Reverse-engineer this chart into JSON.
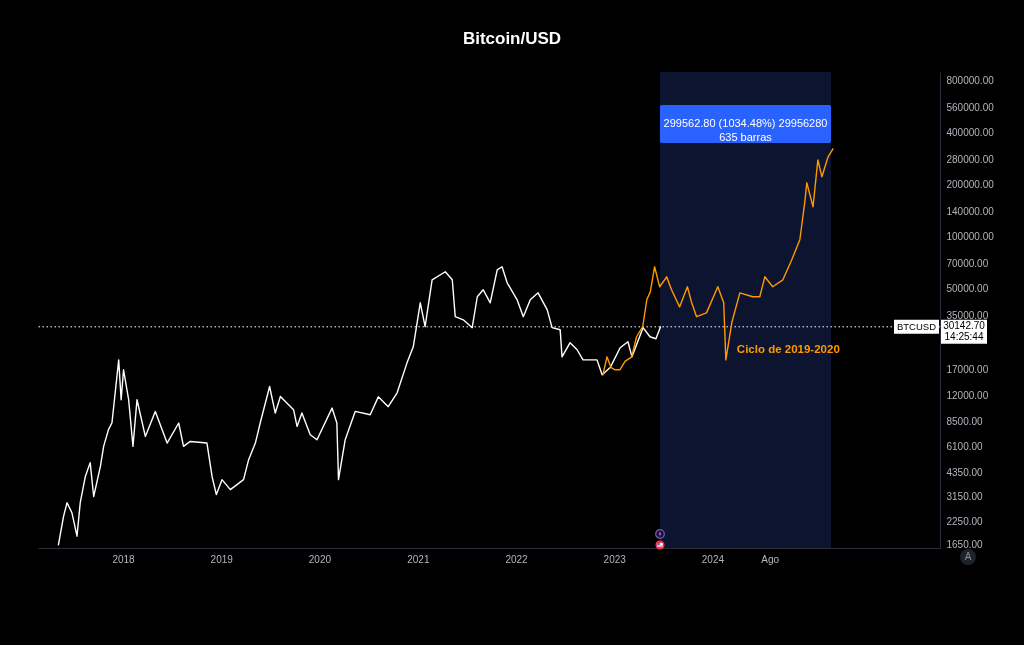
{
  "chart_data": {
    "type": "line",
    "title": "Bitcoin/USD",
    "log": true,
    "xlim": [
      "2017-02-19",
      "2026-04-26"
    ],
    "xticks": [
      "2018",
      "2019",
      "2020",
      "2021",
      "2022",
      "2023",
      "2024",
      {
        "value": "2024-08",
        "label": "Ago"
      }
    ],
    "ylim": [
      1580,
      900000
    ],
    "yticks": [
      {
        "value": 800000,
        "label": "800000.00"
      },
      {
        "value": 560000,
        "label": "560000.00"
      },
      {
        "value": 400000,
        "label": "400000.00"
      },
      {
        "value": 280000,
        "label": "280000.00"
      },
      {
        "value": 200000,
        "label": "200000.00"
      },
      {
        "value": 140000,
        "label": "140000.00"
      },
      {
        "value": 100000,
        "label": "100000.00"
      },
      {
        "value": 70000,
        "label": "70000.00"
      },
      {
        "value": 50000,
        "label": "50000.00"
      },
      {
        "value": 35000,
        "label": "35000.00"
      },
      {
        "value": 17000,
        "label": "17000.00"
      },
      {
        "value": 12000,
        "label": "12000.00"
      },
      {
        "value": 8500,
        "label": "8500.00"
      },
      {
        "value": 6100,
        "label": "6100.00"
      },
      {
        "value": 4350,
        "label": "4350.00"
      },
      {
        "value": 3150,
        "label": "3150.00"
      },
      {
        "value": 2250,
        "label": "2250.00"
      },
      {
        "value": 1650,
        "label": "1650.00"
      }
    ],
    "series": [
      {
        "color": "#ffffff",
        "x": [
          "2017-05-06",
          "2017-05-25",
          "2017-06-07",
          "2017-06-25",
          "2017-07-14",
          "2017-07-26",
          "2017-08-14",
          "2017-09-01",
          "2017-09-14",
          "2017-10-09",
          "2017-10-21",
          "2017-11-08",
          "2017-11-21",
          "2017-12-16",
          "2017-12-25",
          "2018-01-03",
          "2018-01-22",
          "2018-02-07",
          "2018-02-22",
          "2018-03-25",
          "2018-05-01",
          "2018-06-14",
          "2018-07-27",
          "2018-08-14",
          "2018-09-08",
          "2018-11-09",
          "2018-11-28",
          "2018-12-14",
          "2019-01-04",
          "2019-02-04",
          "2019-03-25",
          "2019-04-13",
          "2019-05-08",
          "2019-05-26",
          "2019-06-30",
          "2019-07-21",
          "2019-08-09",
          "2019-09-27",
          "2019-10-10",
          "2019-10-28",
          "2019-11-28",
          "2019-12-23",
          "2020-02-17",
          "2020-03-06",
          "2020-03-12",
          "2020-04-06",
          "2020-05-13",
          "2020-07-08",
          "2020-08-07",
          "2020-09-13",
          "2020-10-16",
          "2020-11-22",
          "2020-12-15",
          "2021-01-10",
          "2021-01-28",
          "2021-02-23",
          "2021-04-13",
          "2021-05-09",
          "2021-05-20",
          "2021-06-19",
          "2021-07-22",
          "2021-08-10",
          "2021-09-01",
          "2021-09-27",
          "2021-10-23",
          "2021-11-10",
          "2021-11-29",
          "2022-01-05",
          "2022-01-28",
          "2022-02-23",
          "2022-03-24",
          "2022-04-27",
          "2022-05-15",
          "2022-06-14",
          "2022-06-21",
          "2022-07-21",
          "2022-08-16",
          "2022-09-07",
          "2022-10-29",
          "2022-11-17",
          "2022-12-17",
          "2023-01-23",
          "2023-02-21",
          "2023-03-08",
          "2023-04-18",
          "2023-05-14",
          "2023-06-05",
          "2023-06-22"
        ],
        "values": [
          1650,
          2410,
          2890,
          2530,
          1850,
          2890,
          4100,
          4930,
          3140,
          4690,
          6120,
          7650,
          8390,
          19400,
          11400,
          17000,
          11400,
          6120,
          11400,
          6990,
          9760,
          6400,
          8360,
          6120,
          6540,
          6400,
          4100,
          3220,
          3930,
          3440,
          3930,
          5130,
          6400,
          8360,
          13600,
          9550,
          11900,
          9980,
          7990,
          9550,
          7150,
          6690,
          10200,
          8360,
          3930,
          6690,
          9760,
          9340,
          11850,
          10400,
          12500,
          18700,
          23100,
          41500,
          30200,
          56400,
          62800,
          56400,
          34500,
          33100,
          29800,
          45000,
          49400,
          41500,
          64400,
          67100,
          54200,
          43200,
          34500,
          43200,
          47400,
          37800,
          29800,
          29000,
          20200,
          24400,
          22200,
          19400,
          19400,
          15900,
          17500,
          22800,
          24700,
          20200,
          29800,
          26400,
          25700,
          30100
        ]
      },
      {
        "name": "Ciclo de 2019-2020",
        "color": "#ff9800",
        "x": [
          "2022-11-20",
          "2022-12-05",
          "2022-12-20",
          "2023-01-05",
          "2023-01-22",
          "2023-02-10",
          "2023-03-07",
          "2023-03-25",
          "2023-04-17",
          "2023-05-02",
          "2023-05-15",
          "2023-05-31",
          "2023-06-19",
          "2023-07-15",
          "2023-08-02",
          "2023-09-01",
          "2023-09-30",
          "2023-10-15",
          "2023-11-03",
          "2023-12-10",
          "2024-01-21",
          "2024-02-12",
          "2024-02-20",
          "2024-03-13",
          "2024-04-12",
          "2024-05-30",
          "2024-06-25",
          "2024-07-14",
          "2024-08-12",
          "2024-09-19",
          "2024-10-22",
          "2024-11-21",
          "2024-12-09",
          "2024-12-17",
          "2025-01-09",
          "2025-01-27",
          "2025-02-11",
          "2025-03-06",
          "2025-03-24"
        ],
        "values": [
          15900,
          20200,
          17500,
          17000,
          17000,
          19000,
          20200,
          26400,
          30200,
          43200,
          48000,
          67100,
          51400,
          58700,
          49400,
          39300,
          51400,
          42000,
          34500,
          36300,
          51400,
          41500,
          19400,
          31800,
          47400,
          45000,
          45000,
          58700,
          51400,
          56400,
          73700,
          96200,
          157400,
          205500,
          149300,
          279100,
          222600,
          290600,
          323400
        ]
      }
    ],
    "ref_lines": [
      {
        "axis": "y",
        "value": 30142.7,
        "label": "BTCUSD",
        "color": "#ffffff",
        "line_style": "dotted"
      }
    ],
    "bands": [
      {
        "axis": "x",
        "from": "2023-06-20",
        "to": "2025-03-17",
        "label": "299562.80 (1034.48%) 29956280\n635 barras",
        "color": "#0c1430"
      }
    ],
    "annotations": [
      "30142.70\n14:25:44",
      "A"
    ]
  }
}
